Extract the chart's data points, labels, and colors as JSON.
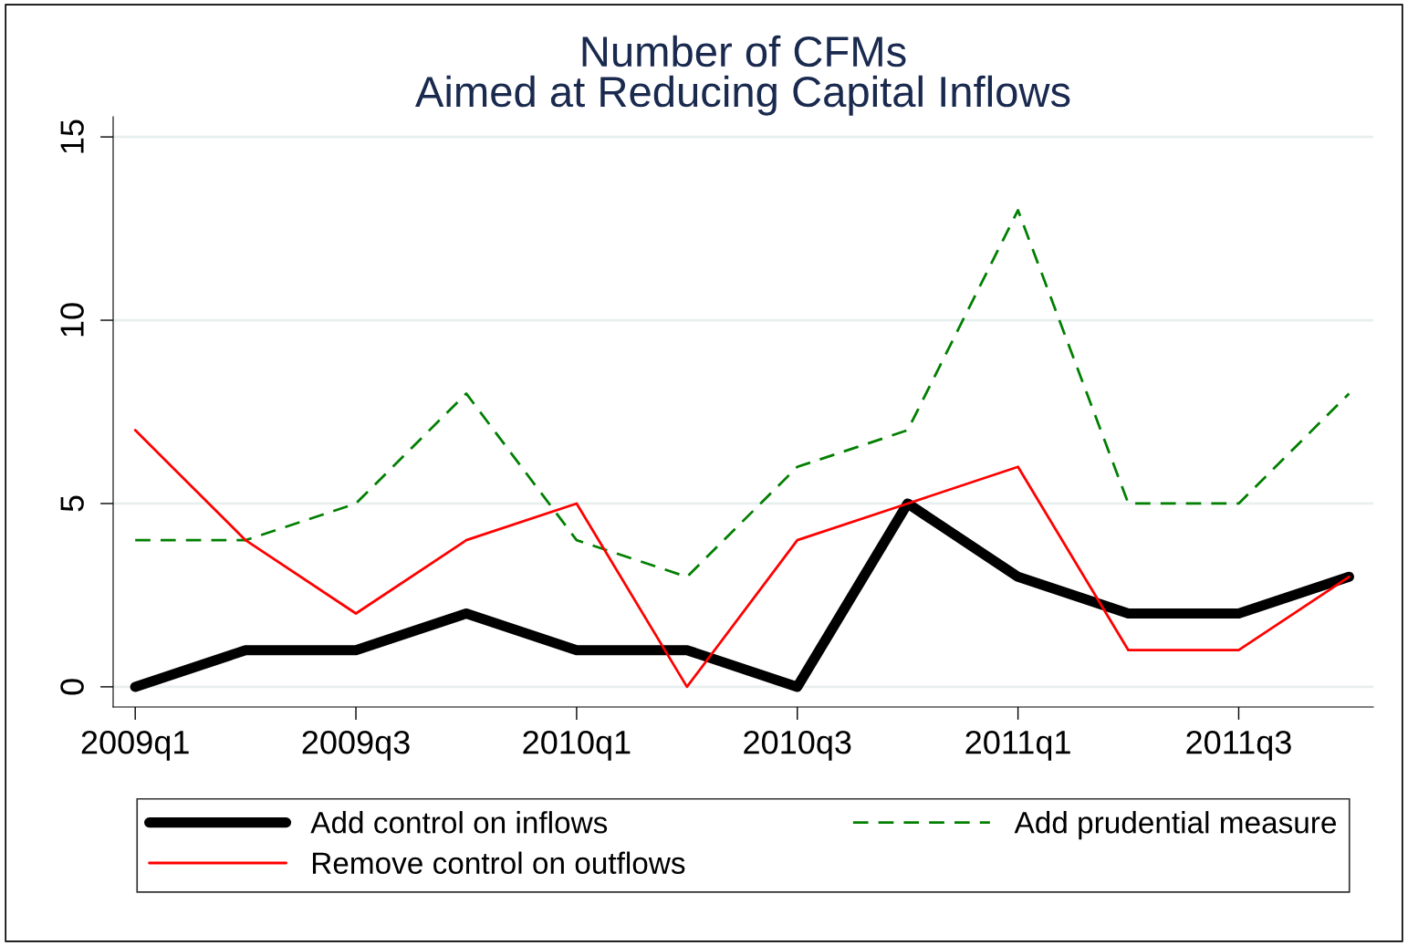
{
  "chart_data": {
    "type": "line",
    "title": "Number of CFMs\nAimed at Reducing Capital Inflows",
    "categories": [
      "2009q1",
      null,
      "2009q3",
      null,
      "2010q1",
      null,
      "2010q3",
      null,
      "2011q1",
      null,
      "2011q3",
      null
    ],
    "series": [
      {
        "name": "Add control on inflows",
        "color": "#000000",
        "values": [
          0,
          1,
          1,
          2,
          1,
          1,
          0,
          5,
          3,
          2,
          2,
          3
        ],
        "line_style": "solid"
      },
      {
        "name": "Add prudential measure",
        "color": "#007f00",
        "values": [
          4,
          4,
          5,
          8,
          4,
          3,
          6,
          7,
          13,
          5,
          5,
          8
        ],
        "line_style": "dashed"
      },
      {
        "name": "Remove control on outflows",
        "color": "#ff0000",
        "values": [
          7,
          4,
          2,
          4,
          5,
          0,
          4,
          5,
          6,
          1,
          1,
          3
        ],
        "line_style": "solid"
      }
    ],
    "ylim": [
      -0.55,
      15.55
    ],
    "yticks": [
      0,
      5,
      10,
      15
    ],
    "grid": "y",
    "legend": "bottom",
    "marker": "none"
  }
}
